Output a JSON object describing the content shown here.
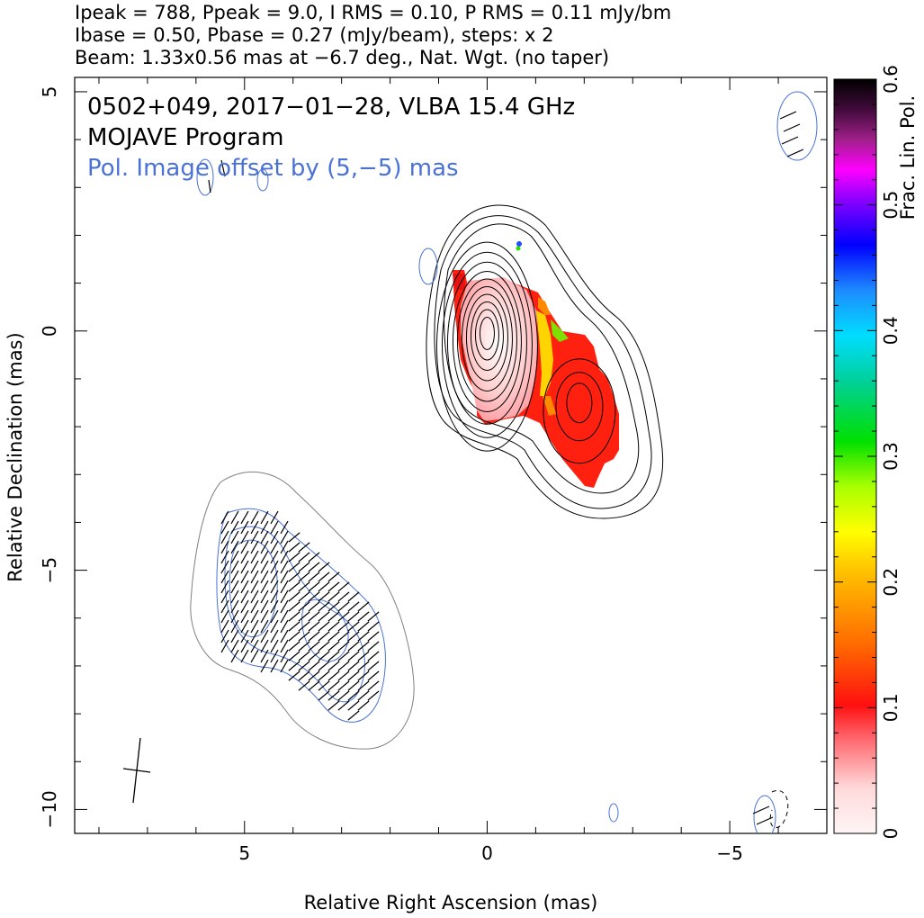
{
  "header": {
    "line1": "Ipeak = 788, Ppeak = 9.0, I RMS = 0.10, P RMS = 0.11 mJy/bm",
    "line2": "Ibase = 0.50, Pbase = 0.27 (mJy/beam), steps: x 2",
    "line3": "Beam: 1.33x0.56 mas at −6.7 deg., Nat. Wgt. (no taper)"
  },
  "annotations": {
    "source": "0502+049, 2017−01−28, VLBA 15.4 GHz",
    "program": "MOJAVE Program",
    "offset": "Pol. Image offset by (5,−5) mas"
  },
  "colors": {
    "total_contour": "#000000",
    "pol_contour": "#4a72d4",
    "offset_text": "#4a72d4",
    "lowest_pol_contour": "#7f7f7f"
  },
  "chart_data": {
    "type": "heatmap",
    "title": "0502+049, 2017−01−28, VLBA 15.4 GHz",
    "xlabel": "Relative Right Ascension (mas)",
    "ylabel": "Relative Declination (mas)",
    "xlim": [
      8.5,
      -7
    ],
    "ylim": [
      -10.5,
      5.3
    ],
    "x_ticks": [
      5,
      0,
      -5
    ],
    "x_tick_labels": [
      "5",
      "0",
      "−5"
    ],
    "y_ticks": [
      5,
      0,
      -5,
      -10
    ],
    "y_tick_labels": [
      "5",
      "0",
      "−5",
      "−10"
    ],
    "colorbar": {
      "label": "Frac. Lin. Pol.",
      "range": [
        0,
        0.6
      ],
      "ticks": [
        0,
        0.1,
        0.2,
        0.3,
        0.4,
        0.5,
        0.6
      ],
      "tick_labels": [
        "0",
        "0.1",
        "0.2",
        "0.3",
        "0.4",
        "0.5",
        "0.6"
      ]
    },
    "stokes_i": {
      "peak_mJy_per_beam": 788,
      "rms_mJy_per_beam": 0.1,
      "base_contour_mJy_per_beam": 0.5,
      "contour_step_factor": 2,
      "core_position_mas": [
        0,
        0
      ],
      "jet_component_position_mas": [
        -1.9,
        -1.4
      ]
    },
    "polarization": {
      "peak_mJy_per_beam": 9.0,
      "rms_mJy_per_beam": 0.11,
      "base_contour_mJy_per_beam": 0.27,
      "image_offset_mas": [
        5,
        -5
      ]
    },
    "beam": {
      "major_mas": 1.33,
      "minor_mas": 0.56,
      "pa_deg": -6.7,
      "weighting": "Nat. Wgt. (no taper)"
    }
  }
}
